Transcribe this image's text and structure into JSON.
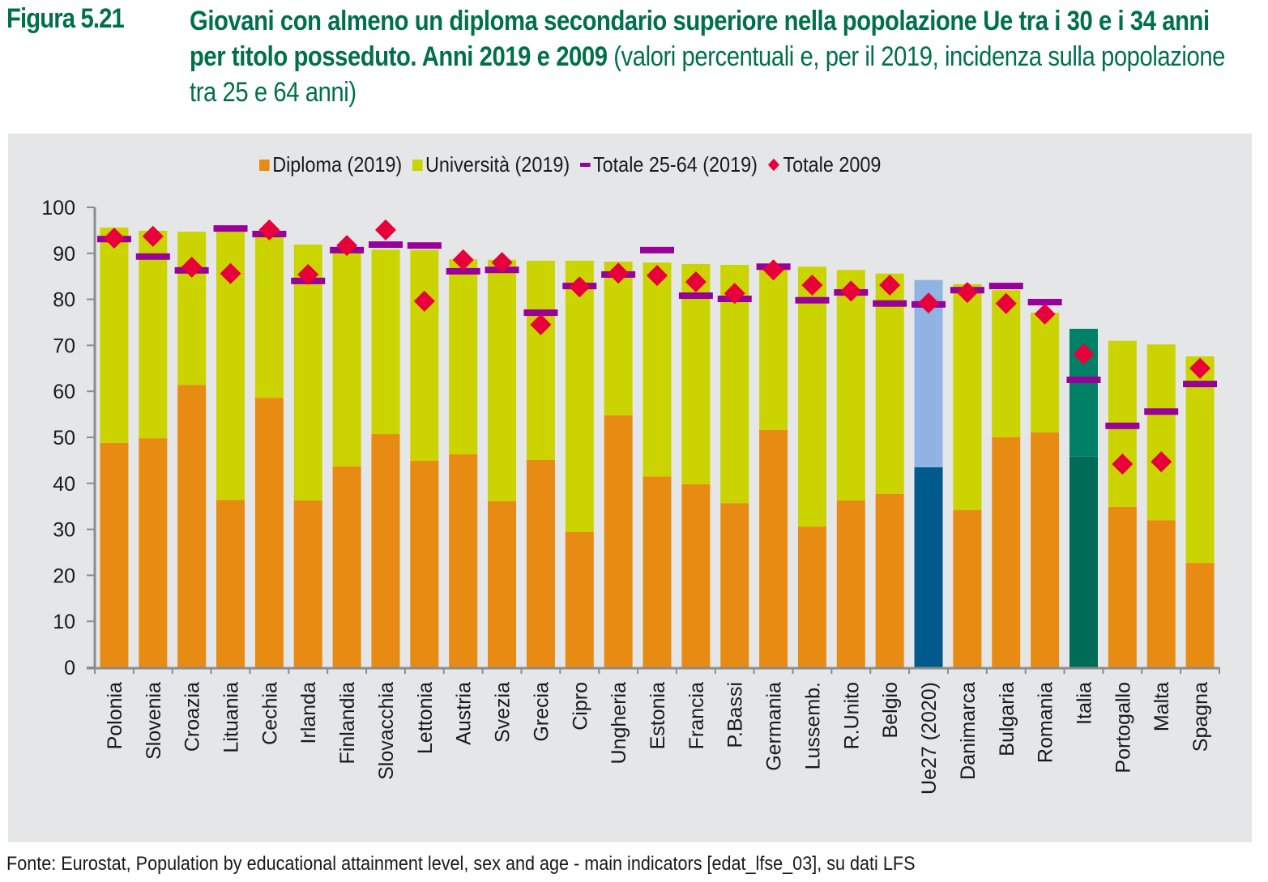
{
  "figure": {
    "number": "Figura 5.21",
    "title_bold": "Giovani con almeno un diploma secondario superiore nella popolazione Ue tra i 30 e i 34 anni per titolo posseduto. Anni 2019 e 2009",
    "title_normal": " (valori percentuali e, per il 2019, incidenza sulla popolazione tra 25 e 64 anni)"
  },
  "legend": {
    "items": [
      {
        "label": "Diploma (2019)",
        "type": "box",
        "color": "#e88b12"
      },
      {
        "label": "Università (2019)",
        "type": "box",
        "color": "#cbd300"
      },
      {
        "label": "Totale 25-64 (2019)",
        "type": "dash",
        "color": "#980099"
      },
      {
        "label": "Totale 2009",
        "type": "diamond",
        "color": "#e8003a"
      }
    ]
  },
  "source": "Fonte: Eurostat, Population by educational attainment level, sex and age - main indicators [edat_lfse_03], su dati LFS",
  "chart_data": {
    "type": "bar",
    "stacked": true,
    "title": "Giovani con almeno un diploma secondario superiore nella popolazione Ue tra i 30 e i 34 anni per titolo posseduto. Anni 2019 e 2009",
    "xlabel": "",
    "ylabel": "",
    "ylim": [
      0,
      100
    ],
    "yticks": [
      0,
      10,
      20,
      30,
      40,
      50,
      60,
      70,
      80,
      90,
      100
    ],
    "grid": false,
    "legend_position": "top-center",
    "categories": [
      "Polonia",
      "Slovenia",
      "Croazia",
      "Lituania",
      "Cechia",
      "Irlanda",
      "Finlandia",
      "Slovacchia",
      "Lettonia",
      "Austria",
      "Svezia",
      "Grecia",
      "Cipro",
      "Ungheria",
      "Estonia",
      "Francia",
      "P.Bassi",
      "Germania",
      "Lussemb.",
      "R.Unito",
      "Belgio",
      "Ue27 (2020)",
      "Danimarca",
      "Bulgaria",
      "Romania",
      "Italia",
      "Portogallo",
      "Malta",
      "Spagna"
    ],
    "highlight": {
      "Ue27 (2020)": {
        "diploma_color": "#005a8c",
        "universita_color": "#8fb4e3"
      },
      "Italia": {
        "diploma_color": "#006b56",
        "universita_color": "#008066"
      }
    },
    "series": [
      {
        "name": "Diploma (2019)",
        "kind": "bar",
        "color": "#e88b12",
        "values": [
          48.8,
          49.8,
          61.4,
          36.4,
          58.6,
          36.3,
          43.7,
          50.7,
          44.9,
          46.3,
          36.1,
          45.1,
          29.4,
          54.8,
          41.5,
          39.8,
          35.7,
          51.6,
          30.6,
          36.3,
          37.7,
          43.5,
          34.2,
          50.0,
          51.1,
          45.8,
          34.9,
          32.0,
          22.7
        ]
      },
      {
        "name": "Università (2019)",
        "kind": "bar",
        "color": "#cbd300",
        "values": [
          46.8,
          45.1,
          33.3,
          58.5,
          35.1,
          55.6,
          46.8,
          40.1,
          45.8,
          42.4,
          52.5,
          43.3,
          59.0,
          33.4,
          46.5,
          47.9,
          51.8,
          35.5,
          56.5,
          50.1,
          47.9,
          40.7,
          49.1,
          32.0,
          26.0,
          27.8,
          36.1,
          38.2,
          44.9
        ]
      },
      {
        "name": "Totale 25-64 (2019)",
        "kind": "dash",
        "color": "#980099",
        "values": [
          93.1,
          89.3,
          86.3,
          95.4,
          94.2,
          84.0,
          90.7,
          91.9,
          91.7,
          86.1,
          86.4,
          77.1,
          82.9,
          85.4,
          90.7,
          80.8,
          80.1,
          87.1,
          79.8,
          81.5,
          79.1,
          78.9,
          82.0,
          82.9,
          79.4,
          62.5,
          52.5,
          55.6,
          61.6
        ]
      },
      {
        "name": "Totale 2009",
        "kind": "diamond",
        "color": "#e8003a",
        "values": [
          93.3,
          93.7,
          87.0,
          85.6,
          95.1,
          85.4,
          91.7,
          95.1,
          79.6,
          88.6,
          88.0,
          74.5,
          82.7,
          85.7,
          85.2,
          83.8,
          81.3,
          86.4,
          83.1,
          81.8,
          83.1,
          79.2,
          81.5,
          79.1,
          76.8,
          68.1,
          44.2,
          44.7,
          65.0
        ]
      }
    ]
  }
}
